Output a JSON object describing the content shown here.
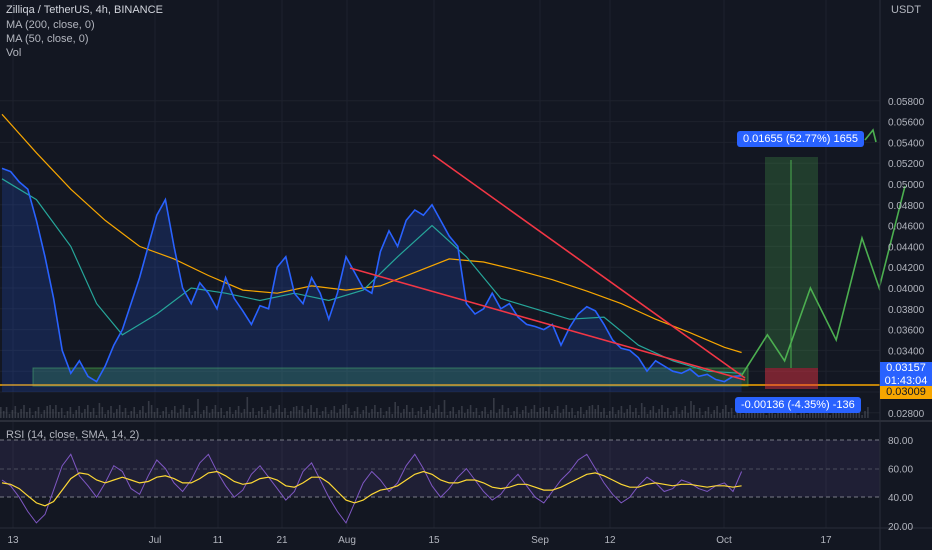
{
  "legend": {
    "title": "Zilliqa / TetherUS, 4h, BINANCE",
    "ma200": "MA (200, close, 0)",
    "ma50": "MA (50, close, 0)",
    "vol": "Vol"
  },
  "rsi_legend": "RSI (14, close, SMA, 14, 2)",
  "price_axis": {
    "unit": "USDT",
    "current_price": "0.03157",
    "countdown": "01:43:04",
    "low_marker": "0.03009"
  },
  "position_tool": {
    "target_label": "0.01655 (52.77%) 1655",
    "stop_label": "-0.00136 (-4.35%) -136"
  },
  "colors": {
    "background": "#131722",
    "price_line": "#2962ff",
    "ma50": "#26a69a",
    "ma200": "#f7a600",
    "trendline": "#f23645",
    "projection": "#4caf50",
    "rsi": "#7e57c2",
    "rsi_ma": "#fdd835"
  },
  "chart_data": [
    {
      "type": "line",
      "title": "Zilliqa / TetherUS, 4h, BINANCE",
      "ylabel": "USDT",
      "ylim": [
        0.027,
        0.059
      ],
      "y_ticks": [
        "0.05800",
        "0.05600",
        "0.05400",
        "0.05200",
        "0.05000",
        "0.04800",
        "0.04600",
        "0.04400",
        "0.04200",
        "0.04000",
        "0.03800",
        "0.03600",
        "0.03400",
        "0.03200",
        "0.03000",
        "0.02800"
      ],
      "x_ticks": [
        "13",
        "Jul",
        "11",
        "21",
        "Aug",
        "15",
        "Sep",
        "12",
        "Oct",
        "17"
      ],
      "series": [
        {
          "name": "price",
          "points": [
            [
              0,
              0.0515
            ],
            [
              1,
              0.0512
            ],
            [
              2,
              0.0502
            ],
            [
              3,
              0.0495
            ],
            [
              4,
              0.0465
            ],
            [
              5,
              0.043
            ],
            [
              6,
              0.039
            ],
            [
              7,
              0.034
            ],
            [
              8,
              0.0318
            ],
            [
              9,
              0.033
            ],
            [
              10,
              0.0315
            ],
            [
              11,
              0.031
            ],
            [
              12,
              0.0325
            ],
            [
              13,
              0.0345
            ],
            [
              14,
              0.036
            ],
            [
              15,
              0.0385
            ],
            [
              16,
              0.041
            ],
            [
              17,
              0.044
            ],
            [
              18,
              0.047
            ],
            [
              19,
              0.0485
            ],
            [
              20,
              0.044
            ],
            [
              21,
              0.04
            ],
            [
              22,
              0.0385
            ],
            [
              23,
              0.0405
            ],
            [
              24,
              0.0395
            ],
            [
              25,
              0.038
            ],
            [
              26,
              0.041
            ],
            [
              27,
              0.039
            ],
            [
              28,
              0.0378
            ],
            [
              29,
              0.0365
            ],
            [
              30,
              0.0383
            ],
            [
              31,
              0.038
            ],
            [
              32,
              0.042
            ],
            [
              33,
              0.043
            ],
            [
              34,
              0.0395
            ],
            [
              35,
              0.0385
            ],
            [
              36,
              0.041
            ],
            [
              37,
              0.0395
            ],
            [
              38,
              0.037
            ],
            [
              39,
              0.0395
            ],
            [
              40,
              0.043
            ],
            [
              41,
              0.0415
            ],
            [
              42,
              0.04
            ],
            [
              43,
              0.0395
            ],
            [
              44,
              0.0435
            ],
            [
              45,
              0.0455
            ],
            [
              46,
              0.044
            ],
            [
              47,
              0.0465
            ],
            [
              48,
              0.0475
            ],
            [
              49,
              0.047
            ],
            [
              50,
              0.048
            ],
            [
              51,
              0.0465
            ],
            [
              52,
              0.045
            ],
            [
              53,
              0.044
            ],
            [
              54,
              0.0385
            ],
            [
              55,
              0.0375
            ],
            [
              56,
              0.038
            ],
            [
              57,
              0.0395
            ],
            [
              58,
              0.038
            ],
            [
              59,
              0.0385
            ],
            [
              60,
              0.0372
            ],
            [
              61,
              0.0365
            ],
            [
              62,
              0.0363
            ],
            [
              63,
              0.036
            ],
            [
              64,
              0.0365
            ],
            [
              65,
              0.0345
            ],
            [
              66,
              0.0362
            ],
            [
              67,
              0.0375
            ],
            [
              68,
              0.0382
            ],
            [
              69,
              0.0378
            ],
            [
              70,
              0.0365
            ],
            [
              71,
              0.035
            ],
            [
              72,
              0.0342
            ],
            [
              73,
              0.034
            ],
            [
              74,
              0.0333
            ],
            [
              75,
              0.032
            ],
            [
              76,
              0.033
            ],
            [
              77,
              0.0325
            ],
            [
              78,
              0.032
            ],
            [
              79,
              0.0318
            ],
            [
              80,
              0.0322
            ],
            [
              81,
              0.0315
            ],
            [
              82,
              0.0317
            ],
            [
              83,
              0.0312
            ],
            [
              84,
              0.031
            ],
            [
              85,
              0.0315
            ],
            [
              86,
              0.03157
            ]
          ]
        },
        {
          "name": "MA (50, close, 0)",
          "points": [
            [
              0,
              0.0505
            ],
            [
              4,
              0.0485
            ],
            [
              8,
              0.044
            ],
            [
              11,
              0.0385
            ],
            [
              14,
              0.0355
            ],
            [
              18,
              0.0375
            ],
            [
              22,
              0.04
            ],
            [
              26,
              0.0395
            ],
            [
              30,
              0.0388
            ],
            [
              34,
              0.0395
            ],
            [
              38,
              0.0388
            ],
            [
              42,
              0.0398
            ],
            [
              46,
              0.043
            ],
            [
              50,
              0.046
            ],
            [
              54,
              0.043
            ],
            [
              58,
              0.039
            ],
            [
              62,
              0.038
            ],
            [
              66,
              0.037
            ],
            [
              70,
              0.0372
            ],
            [
              74,
              0.0345
            ],
            [
              78,
              0.033
            ],
            [
              82,
              0.032
            ],
            [
              86,
              0.0318
            ]
          ]
        },
        {
          "name": "MA (200, close, 0)",
          "points": [
            [
              0,
              0.0567
            ],
            [
              4,
              0.053
            ],
            [
              8,
              0.0495
            ],
            [
              12,
              0.0465
            ],
            [
              16,
              0.044
            ],
            [
              20,
              0.0428
            ],
            [
              24,
              0.0412
            ],
            [
              28,
              0.0398
            ],
            [
              32,
              0.0395
            ],
            [
              36,
              0.0402
            ],
            [
              40,
              0.0398
            ],
            [
              44,
              0.0402
            ],
            [
              48,
              0.0415
            ],
            [
              52,
              0.0428
            ],
            [
              56,
              0.0425
            ],
            [
              60,
              0.0417
            ],
            [
              64,
              0.0408
            ],
            [
              68,
              0.0397
            ],
            [
              72,
              0.0385
            ],
            [
              76,
              0.037
            ],
            [
              80,
              0.0357
            ],
            [
              84,
              0.0343
            ],
            [
              86,
              0.0338
            ]
          ]
        },
        {
          "name": "projection",
          "points": [
            [
              86,
              0.0316
            ],
            [
              89,
              0.0355
            ],
            [
              91,
              0.033
            ],
            [
              94,
              0.04
            ],
            [
              97,
              0.035
            ],
            [
              100,
              0.0448
            ],
            [
              102,
              0.04
            ],
            [
              105,
              0.0498
            ]
          ]
        }
      ]
    },
    {
      "type": "line",
      "title": "RSI (14, close, SMA, 14, 2)",
      "ylim": [
        14,
        82
      ],
      "y_ticks": [
        "80.00",
        "60.00",
        "40.00",
        "20.00"
      ],
      "series": [
        {
          "name": "RSI",
          "values": [
            52,
            48,
            40,
            30,
            22,
            28,
            45,
            62,
            70,
            55,
            48,
            40,
            50,
            62,
            58,
            46,
            42,
            55,
            66,
            60,
            50,
            44,
            52,
            64,
            70,
            58,
            48,
            40,
            45,
            56,
            62,
            54,
            46,
            38,
            44,
            58,
            64,
            52,
            40,
            30,
            22,
            36,
            50,
            58,
            52,
            44,
            50,
            62,
            70,
            60,
            48,
            40,
            46,
            54,
            60,
            52,
            44,
            38,
            42,
            50,
            56,
            48,
            40,
            36,
            44,
            52,
            58,
            66,
            70,
            60,
            50,
            42,
            36,
            40,
            48,
            54,
            50,
            44,
            46,
            52,
            50,
            46,
            44,
            48,
            50,
            44,
            58
          ]
        },
        {
          "name": "RSI MA",
          "values": [
            50,
            49,
            46,
            41,
            36,
            34,
            37,
            45,
            53,
            57,
            56,
            52,
            50,
            52,
            54,
            52,
            50,
            51,
            54,
            55,
            53,
            50,
            50,
            53,
            57,
            58,
            55,
            51,
            49,
            50,
            53,
            54,
            52,
            48,
            47,
            50,
            54,
            54,
            50,
            44,
            38,
            36,
            38,
            42,
            45,
            46,
            48,
            52,
            56,
            58,
            56,
            52,
            50,
            50,
            52,
            52,
            50,
            47,
            46,
            47,
            49,
            49,
            47,
            45,
            45,
            47,
            50,
            53,
            56,
            57,
            55,
            52,
            49,
            47,
            47,
            49,
            50,
            49,
            48,
            49,
            49,
            48,
            47,
            48,
            48,
            47,
            48
          ]
        }
      ]
    }
  ]
}
